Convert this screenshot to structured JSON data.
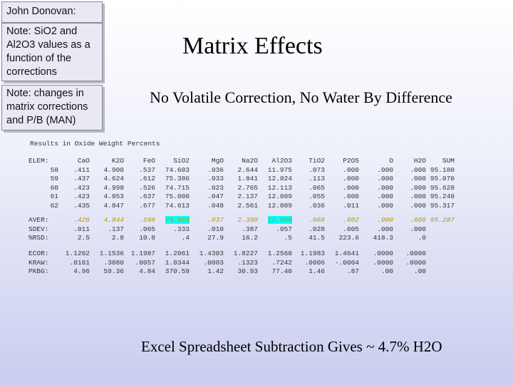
{
  "notes": {
    "author": "John Donovan:",
    "sio2": "Note: SiO2 and Al2O3 values as a function of the corrections",
    "matrix": "Note: changes in matrix corrections and P/B (MAN)"
  },
  "title": "Matrix Effects",
  "subtitle": "No Volatile Correction, No Water By Difference",
  "results_label": "Results in Oxide Weight Percents",
  "footer": "Excel Spreadsheet Subtraction Gives ~ 4.7% H2O",
  "header": [
    "ELEM:",
    "CaO",
    "K2O",
    "FeO",
    "SiO2",
    "MgO",
    "Na2O",
    "Al2O3",
    "TiO2",
    "P2O5",
    "O",
    "H2O",
    "SUM"
  ],
  "rows": [
    [
      "58",
      ".411",
      "4.900",
      ".537",
      "74.603",
      ".036",
      "2.644",
      "11.975",
      ".073",
      ".000",
      ".000",
      ".000",
      "95.180"
    ],
    [
      "59",
      ".437",
      "4.624",
      ".612",
      "75.386",
      ".033",
      "1.841",
      "12.024",
      ".113",
      ".000",
      ".000",
      ".000",
      "95.070"
    ],
    [
      "60",
      ".423",
      "4.998",
      ".526",
      "74.715",
      ".023",
      "2.765",
      "12.113",
      ".065",
      ".000",
      ".000",
      ".000",
      "95.628"
    ],
    [
      "61",
      ".423",
      "4.853",
      ".637",
      "75.000",
      ".047",
      "2.137",
      "12.089",
      ".055",
      ".000",
      ".000",
      ".000",
      "95.240"
    ],
    [
      "62",
      ".435",
      "4.847",
      ".677",
      "74.613",
      ".048",
      "2.561",
      "12.089",
      ".036",
      ".011",
      ".000",
      ".000",
      "95.317"
    ]
  ],
  "stats": [
    [
      "AVER:",
      ".426",
      "4.844",
      ".598",
      "74.863",
      ".037",
      "2.390",
      "12.058",
      ".068",
      ".002",
      ".000",
      ".000",
      "95.287"
    ],
    [
      "SDEV:",
      ".011",
      ".137",
      ".065",
      ".333",
      ".010",
      ".387",
      ".057",
      ".028",
      ".005",
      ".000",
      ".000",
      ""
    ],
    [
      "%RSD:",
      "2.5",
      "2.8",
      "10.8",
      ".4",
      "27.9",
      "16.2",
      ".5",
      "41.5",
      "223.6",
      "418.3",
      ".0",
      ""
    ]
  ],
  "corr": [
    [
      "ECOR:",
      "1.1202",
      "1.1536",
      "1.1987",
      "1.2061",
      "1.4303",
      "1.8227",
      "1.2568",
      "1.1983",
      "1.4641",
      ".0000",
      ".0000",
      ""
    ],
    [
      "KRAW:",
      ".0161",
      ".3080",
      ".0057",
      "1.0344",
      ".0003",
      ".1323",
      ".7242",
      ".0006",
      "-.0004",
      ".0000",
      ".0000",
      ""
    ],
    [
      "PKBG:",
      "4.96",
      "59.36",
      "4.84",
      "370.59",
      "1.42",
      "30.93",
      "77.40",
      "1.46",
      ".87",
      ".00",
      ".00",
      ""
    ]
  ],
  "highlights": {
    "avg_color": "#b39800",
    "cyan": "#00ffff"
  }
}
